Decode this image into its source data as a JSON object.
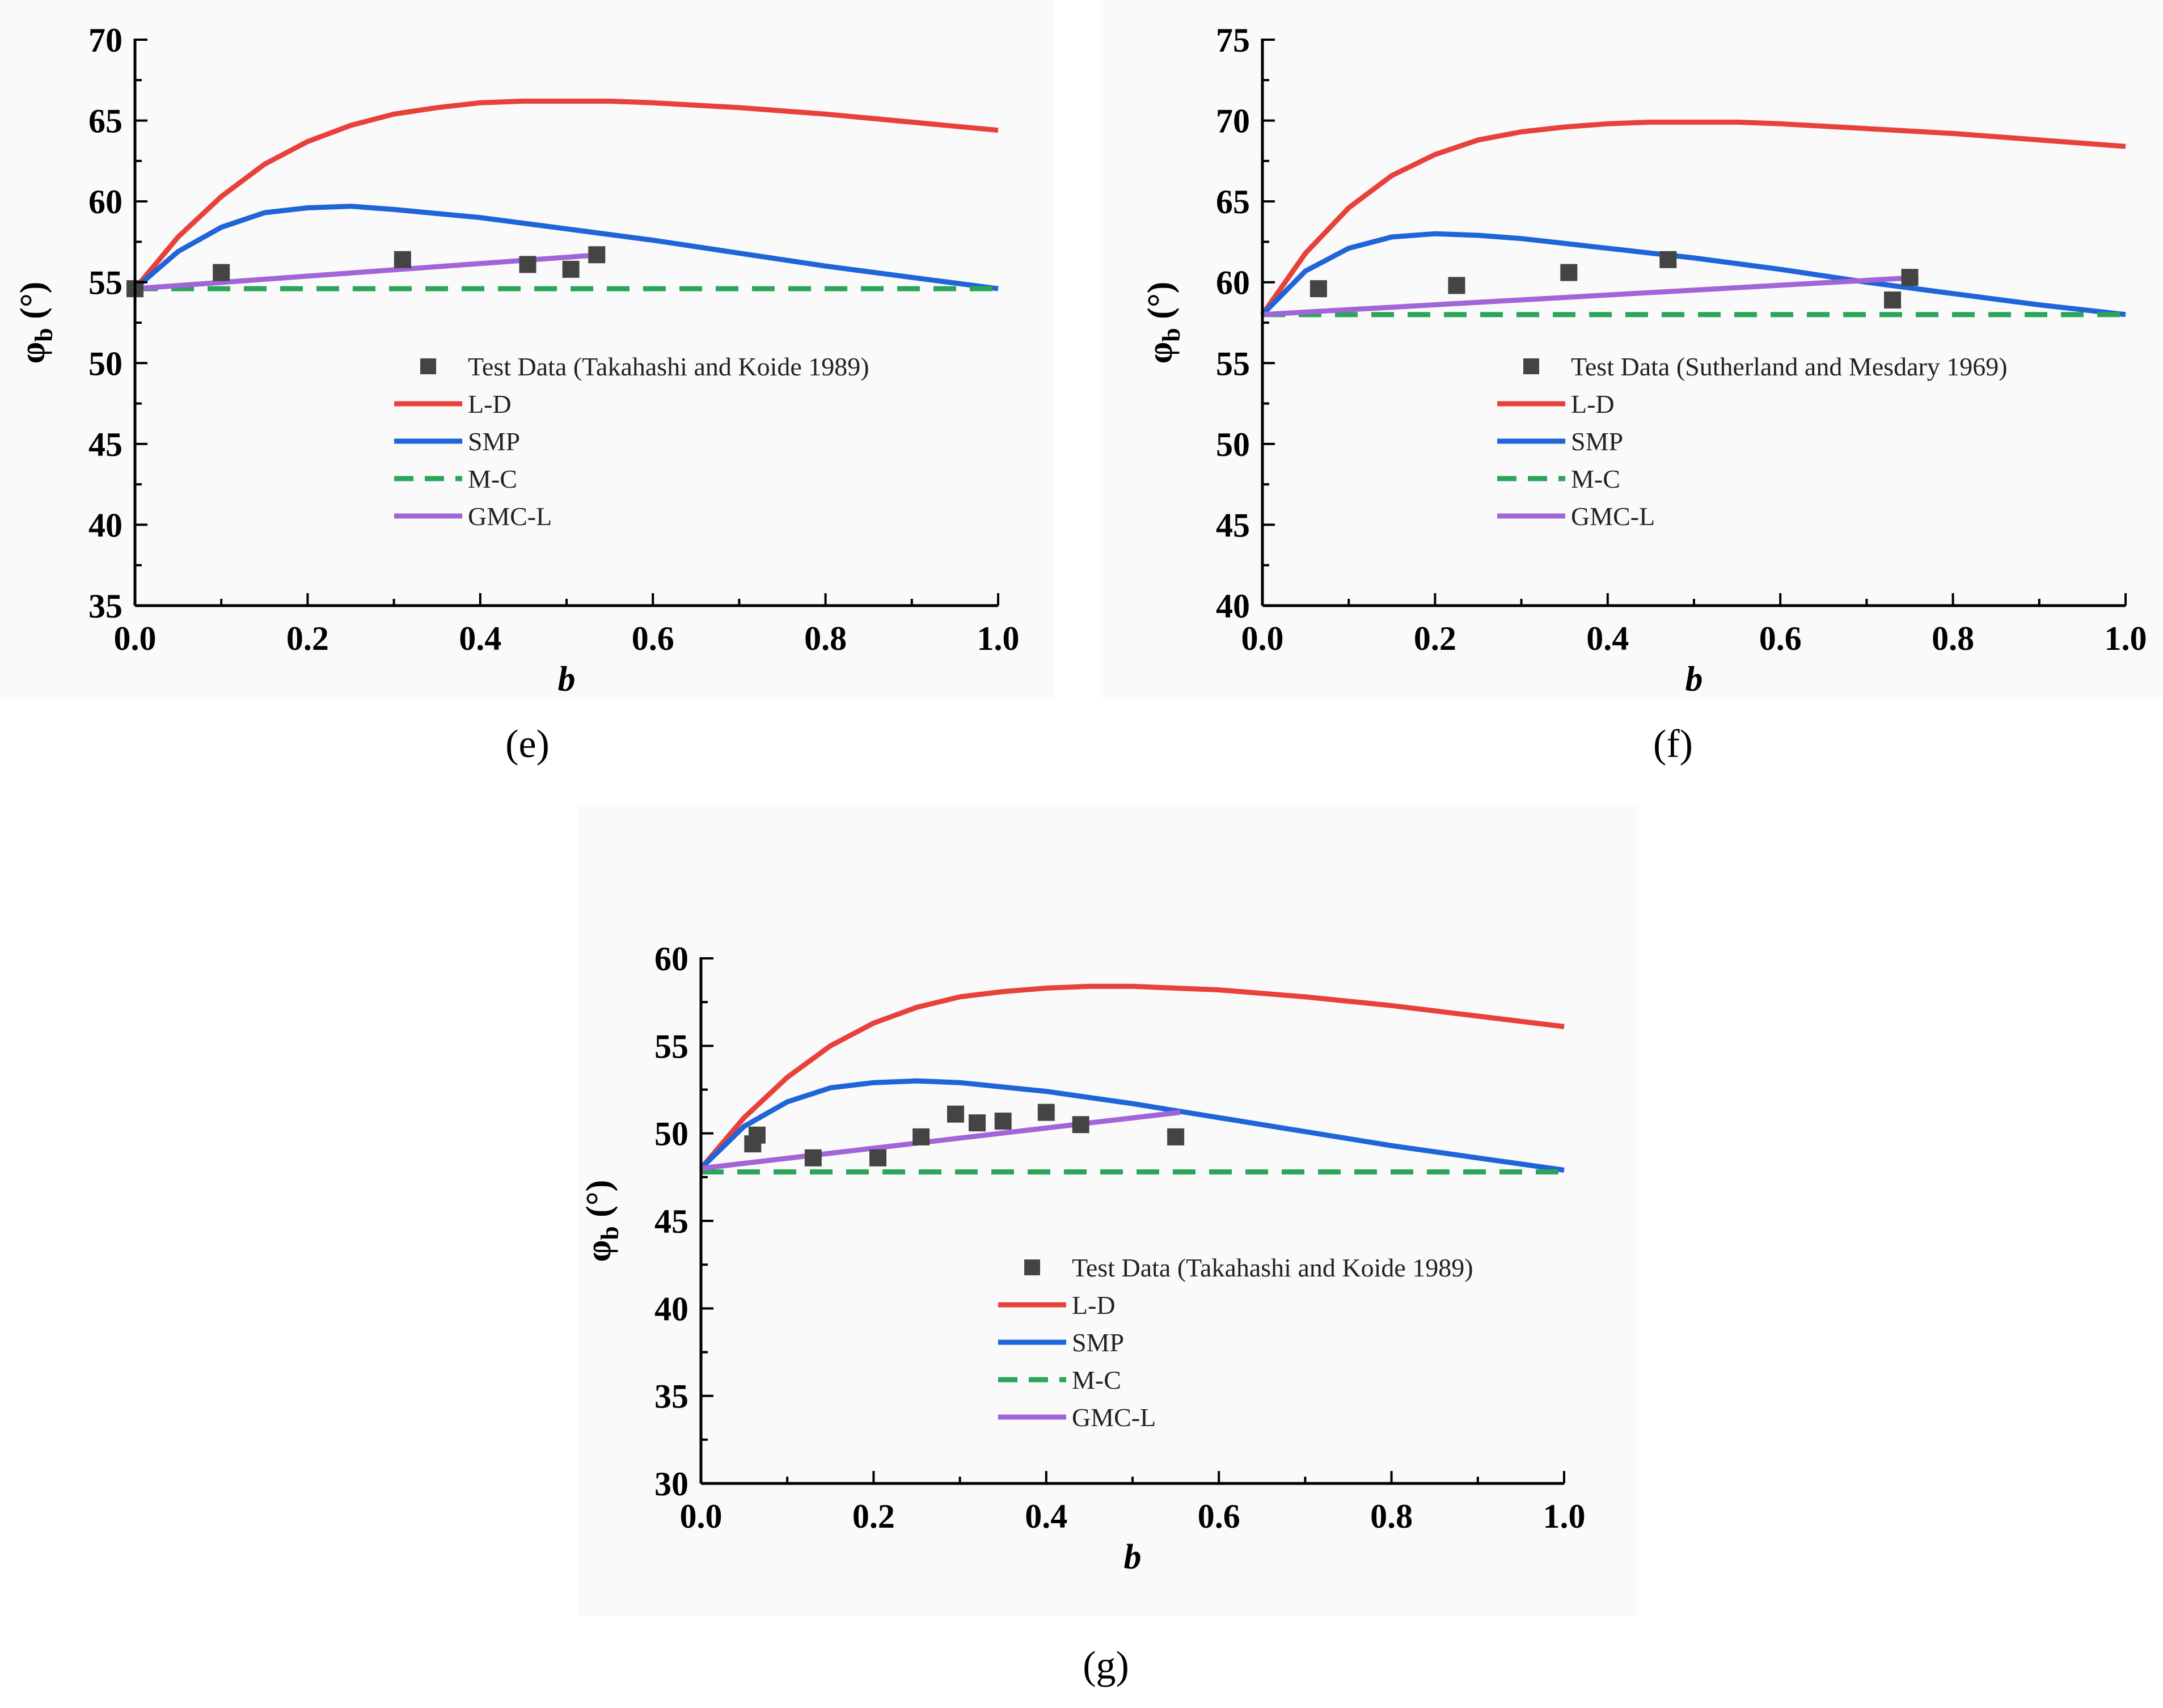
{
  "figure": {
    "panels": [
      "e",
      "f",
      "g"
    ]
  },
  "chart_data": [
    {
      "type": "line",
      "panel_label": "e",
      "caption": "(e)",
      "title": "",
      "xlabel": "b",
      "ylabel_main": "φ",
      "ylabel_sub": "b",
      "ylabel_unit": "(°)",
      "xlim": [
        0.0,
        1.0
      ],
      "ylim": [
        35,
        70
      ],
      "xticks": [
        "0.0",
        "0.2",
        "0.4",
        "0.6",
        "0.8",
        "1.0"
      ],
      "yticks": [
        "35",
        "40",
        "45",
        "50",
        "55",
        "60",
        "65",
        "70"
      ],
      "test_data": {
        "name": "Test Data (Takahashi and Koide 1989)",
        "x": [
          0.0,
          0.1,
          0.31,
          0.455,
          0.505,
          0.535
        ],
        "y": [
          54.6,
          55.6,
          56.4,
          56.1,
          55.8,
          56.7
        ]
      },
      "series": [
        {
          "name": "L-D",
          "color": "#e8413c",
          "dashed": false,
          "x": [
            0.0,
            0.05,
            0.1,
            0.15,
            0.2,
            0.25,
            0.3,
            0.35,
            0.4,
            0.45,
            0.5,
            0.55,
            0.6,
            0.7,
            0.8,
            0.9,
            1.0
          ],
          "y": [
            54.6,
            57.8,
            60.3,
            62.3,
            63.7,
            64.7,
            65.4,
            65.8,
            66.1,
            66.2,
            66.2,
            66.2,
            66.1,
            65.8,
            65.4,
            64.9,
            64.4
          ]
        },
        {
          "name": "SMP",
          "color": "#1f64d8",
          "dashed": false,
          "x": [
            0.0,
            0.05,
            0.1,
            0.15,
            0.2,
            0.25,
            0.3,
            0.4,
            0.5,
            0.6,
            0.7,
            0.8,
            0.9,
            1.0
          ],
          "y": [
            54.6,
            56.9,
            58.4,
            59.3,
            59.6,
            59.7,
            59.5,
            59.0,
            58.3,
            57.6,
            56.8,
            56.0,
            55.3,
            54.6
          ]
        },
        {
          "name": "M-C",
          "color": "#2aa55a",
          "dashed": true,
          "x": [
            0.0,
            1.0
          ],
          "y": [
            54.6,
            54.6
          ]
        },
        {
          "name": "GMC-L",
          "color": "#a265d8",
          "dashed": false,
          "x": [
            0.0,
            0.54
          ],
          "y": [
            54.6,
            56.7
          ]
        }
      ]
    },
    {
      "type": "line",
      "panel_label": "f",
      "caption": "(f)",
      "title": "",
      "xlabel": "b",
      "ylabel_main": "φ",
      "ylabel_sub": "b",
      "ylabel_unit": "(°)",
      "xlim": [
        0.0,
        1.0
      ],
      "ylim": [
        40,
        75
      ],
      "xticks": [
        "0.0",
        "0.2",
        "0.4",
        "0.6",
        "0.8",
        "1.0"
      ],
      "yticks": [
        "40",
        "45",
        "50",
        "55",
        "60",
        "65",
        "70",
        "75"
      ],
      "test_data": {
        "name": "Test Data (Sutherland and Mesdary 1969)",
        "x": [
          0.065,
          0.225,
          0.355,
          0.47,
          0.73,
          0.75
        ],
        "y": [
          59.6,
          59.8,
          60.6,
          61.4,
          58.9,
          60.3
        ]
      },
      "series": [
        {
          "name": "L-D",
          "color": "#e8413c",
          "dashed": false,
          "x": [
            0.0,
            0.05,
            0.1,
            0.15,
            0.2,
            0.25,
            0.3,
            0.35,
            0.4,
            0.45,
            0.5,
            0.55,
            0.6,
            0.7,
            0.8,
            0.9,
            1.0
          ],
          "y": [
            58.0,
            61.8,
            64.6,
            66.6,
            67.9,
            68.8,
            69.3,
            69.6,
            69.8,
            69.9,
            69.9,
            69.9,
            69.8,
            69.5,
            69.2,
            68.8,
            68.4
          ]
        },
        {
          "name": "SMP",
          "color": "#1f64d8",
          "dashed": false,
          "x": [
            0.0,
            0.05,
            0.1,
            0.15,
            0.2,
            0.25,
            0.3,
            0.4,
            0.5,
            0.6,
            0.7,
            0.8,
            0.9,
            1.0
          ],
          "y": [
            58.0,
            60.7,
            62.1,
            62.8,
            63.0,
            62.9,
            62.7,
            62.1,
            61.5,
            60.8,
            60.0,
            59.3,
            58.6,
            58.0
          ]
        },
        {
          "name": "M-C",
          "color": "#2aa55a",
          "dashed": true,
          "x": [
            0.0,
            1.0
          ],
          "y": [
            58.0,
            58.0
          ]
        },
        {
          "name": "GMC-L",
          "color": "#a265d8",
          "dashed": false,
          "x": [
            0.0,
            0.76
          ],
          "y": [
            58.0,
            60.3
          ]
        }
      ]
    },
    {
      "type": "line",
      "panel_label": "g",
      "caption": "(g)",
      "title": "",
      "xlabel": "b",
      "ylabel_main": "φ",
      "ylabel_sub": "b",
      "ylabel_unit": "(°)",
      "xlim": [
        0.0,
        1.0
      ],
      "ylim": [
        30,
        60
      ],
      "xticks": [
        "0.0",
        "0.2",
        "0.4",
        "0.6",
        "0.8",
        "1.0"
      ],
      "yticks": [
        "30",
        "35",
        "40",
        "45",
        "50",
        "55",
        "60"
      ],
      "test_data": {
        "name": "Test Data (Takahashi and Koide 1989)",
        "x": [
          0.06,
          0.065,
          0.13,
          0.205,
          0.255,
          0.295,
          0.32,
          0.35,
          0.4,
          0.44,
          0.55
        ],
        "y": [
          49.4,
          49.9,
          48.6,
          48.6,
          49.8,
          51.1,
          50.6,
          50.7,
          51.2,
          50.5,
          49.8
        ]
      },
      "series": [
        {
          "name": "L-D",
          "color": "#e8413c",
          "dashed": false,
          "x": [
            0.0,
            0.05,
            0.1,
            0.15,
            0.2,
            0.25,
            0.3,
            0.35,
            0.4,
            0.45,
            0.5,
            0.55,
            0.6,
            0.7,
            0.8,
            0.9,
            1.0
          ],
          "y": [
            48.0,
            50.9,
            53.2,
            55.0,
            56.3,
            57.2,
            57.8,
            58.1,
            58.3,
            58.4,
            58.4,
            58.3,
            58.2,
            57.8,
            57.3,
            56.7,
            56.1
          ]
        },
        {
          "name": "SMP",
          "color": "#1f64d8",
          "dashed": false,
          "x": [
            0.0,
            0.05,
            0.1,
            0.15,
            0.2,
            0.25,
            0.3,
            0.4,
            0.5,
            0.6,
            0.7,
            0.8,
            0.9,
            1.0
          ],
          "y": [
            48.0,
            50.4,
            51.8,
            52.6,
            52.9,
            53.0,
            52.9,
            52.4,
            51.7,
            50.9,
            50.1,
            49.3,
            48.6,
            47.9
          ]
        },
        {
          "name": "M-C",
          "color": "#2aa55a",
          "dashed": true,
          "x": [
            0.0,
            1.0
          ],
          "y": [
            47.8,
            47.8
          ]
        },
        {
          "name": "GMC-L",
          "color": "#a265d8",
          "dashed": false,
          "x": [
            0.0,
            0.555
          ],
          "y": [
            48.0,
            51.2
          ]
        }
      ]
    }
  ]
}
